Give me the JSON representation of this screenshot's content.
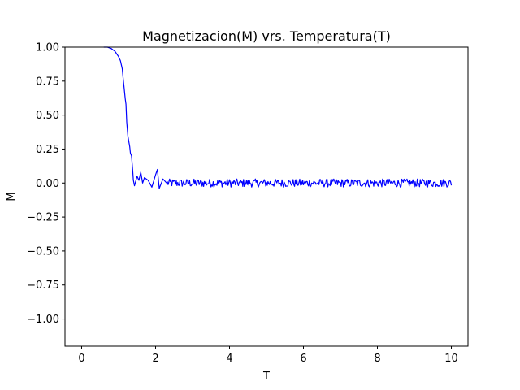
{
  "chart_data": {
    "type": "line",
    "title": "Magnetizacion(M) vrs. Temperatura(T)",
    "xlabel": "T",
    "ylabel": "M",
    "xlim": [
      -0.45,
      10.45
    ],
    "ylim": [
      -1.2,
      1.0
    ],
    "x_ticks": [
      0,
      2,
      4,
      6,
      8,
      10
    ],
    "x_tick_labels": [
      "0",
      "2",
      "4",
      "6",
      "8",
      "10"
    ],
    "y_ticks": [
      1.0,
      0.75,
      0.5,
      0.25,
      0.0,
      -0.25,
      -0.5,
      -0.75,
      -1.0
    ],
    "y_tick_labels": [
      "1.00",
      "0.75",
      "0.50",
      "0.25",
      "0.00",
      "−0.25",
      "−0.50",
      "−0.75",
      "−1.00"
    ],
    "grid": false,
    "legend": "none",
    "series": [
      {
        "color": "#0000ff",
        "x": [
          0.6,
          0.7,
          0.8,
          0.85,
          0.9,
          0.95,
          1.0,
          1.05,
          1.1,
          1.12,
          1.15,
          1.18,
          1.2,
          1.22,
          1.25,
          1.28,
          1.3,
          1.32,
          1.35,
          1.38,
          1.4,
          1.43,
          1.45,
          1.5,
          1.55,
          1.6,
          1.65,
          1.7,
          1.8,
          1.9,
          2.0,
          2.05,
          2.1,
          2.2,
          2.3
        ],
        "y": [
          1.0,
          1.0,
          0.99,
          0.98,
          0.97,
          0.95,
          0.93,
          0.9,
          0.84,
          0.78,
          0.7,
          0.62,
          0.58,
          0.45,
          0.35,
          0.3,
          0.27,
          0.22,
          0.2,
          0.1,
          0.02,
          -0.02,
          0.0,
          0.05,
          0.02,
          0.08,
          0.0,
          0.04,
          0.02,
          -0.03,
          0.06,
          0.1,
          -0.04,
          0.03,
          0.0
        ],
        "noise": {
          "x_start": 2.3,
          "x_end": 10.0,
          "step": 0.02,
          "mean": 0.0,
          "amplitude": 0.03
        }
      }
    ]
  }
}
